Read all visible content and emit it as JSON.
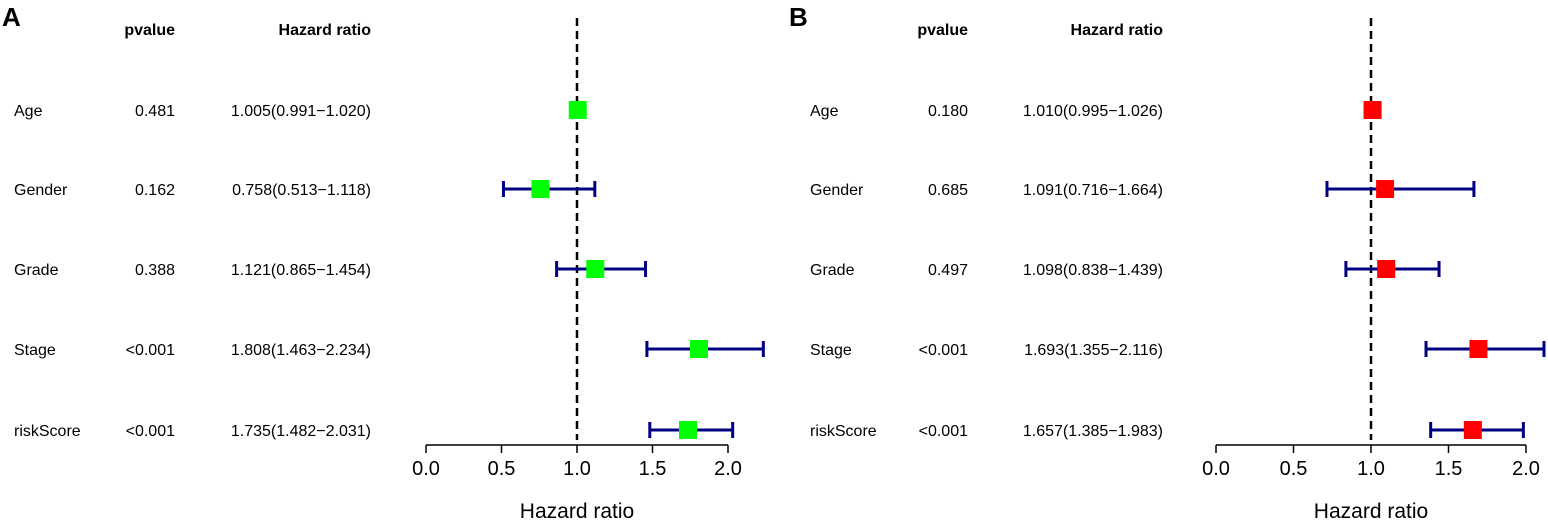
{
  "colors": {
    "whisker": "#000080",
    "ref_line": "#000000",
    "axis": "#000000",
    "panel_a_marker": "#00ff00",
    "panel_b_marker": "#ff0000"
  },
  "chart_data": [
    {
      "type": "forest",
      "panel_label": "A",
      "headers": {
        "pvalue": "pvalue",
        "hazard_ratio": "Hazard ratio"
      },
      "xlabel": "Hazard ratio",
      "xlim": [
        0,
        2.0
      ],
      "reference_value": 1.0,
      "ticks": [
        "0.0",
        "0.5",
        "1.0",
        "1.5",
        "2.0"
      ],
      "marker_color": "#00ff00",
      "rows": [
        {
          "variable": "Age",
          "pvalue": "0.481",
          "hr_text": "1.005(0.991−1.020)",
          "hr": 1.005,
          "lower": 0.991,
          "upper": 1.02
        },
        {
          "variable": "Gender",
          "pvalue": "0.162",
          "hr_text": "0.758(0.513−1.118)",
          "hr": 0.758,
          "lower": 0.513,
          "upper": 1.118
        },
        {
          "variable": "Grade",
          "pvalue": "0.388",
          "hr_text": "1.121(0.865−1.454)",
          "hr": 1.121,
          "lower": 0.865,
          "upper": 1.454
        },
        {
          "variable": "Stage",
          "pvalue": "<0.001",
          "hr_text": "1.808(1.463−2.234)",
          "hr": 1.808,
          "lower": 1.463,
          "upper": 2.234
        },
        {
          "variable": "riskScore",
          "pvalue": "<0.001",
          "hr_text": "1.735(1.482−2.031)",
          "hr": 1.735,
          "lower": 1.482,
          "upper": 2.031
        }
      ]
    },
    {
      "type": "forest",
      "panel_label": "B",
      "headers": {
        "pvalue": "pvalue",
        "hazard_ratio": "Hazard ratio"
      },
      "xlabel": "Hazard ratio",
      "xlim": [
        0,
        2.0
      ],
      "reference_value": 1.0,
      "ticks": [
        "0.0",
        "0.5",
        "1.0",
        "1.5",
        "2.0"
      ],
      "marker_color": "#ff0000",
      "rows": [
        {
          "variable": "Age",
          "pvalue": "0.180",
          "hr_text": "1.010(0.995−1.026)",
          "hr": 1.01,
          "lower": 0.995,
          "upper": 1.026
        },
        {
          "variable": "Gender",
          "pvalue": "0.685",
          "hr_text": "1.091(0.716−1.664)",
          "hr": 1.091,
          "lower": 0.716,
          "upper": 1.664
        },
        {
          "variable": "Grade",
          "pvalue": "0.497",
          "hr_text": "1.098(0.838−1.439)",
          "hr": 1.098,
          "lower": 0.838,
          "upper": 1.439
        },
        {
          "variable": "Stage",
          "pvalue": "<0.001",
          "hr_text": "1.693(1.355−2.116)",
          "hr": 1.693,
          "lower": 1.355,
          "upper": 2.116
        },
        {
          "variable": "riskScore",
          "pvalue": "<0.001",
          "hr_text": "1.657(1.385−1.983)",
          "hr": 1.657,
          "lower": 1.385,
          "upper": 1.983
        }
      ]
    }
  ]
}
